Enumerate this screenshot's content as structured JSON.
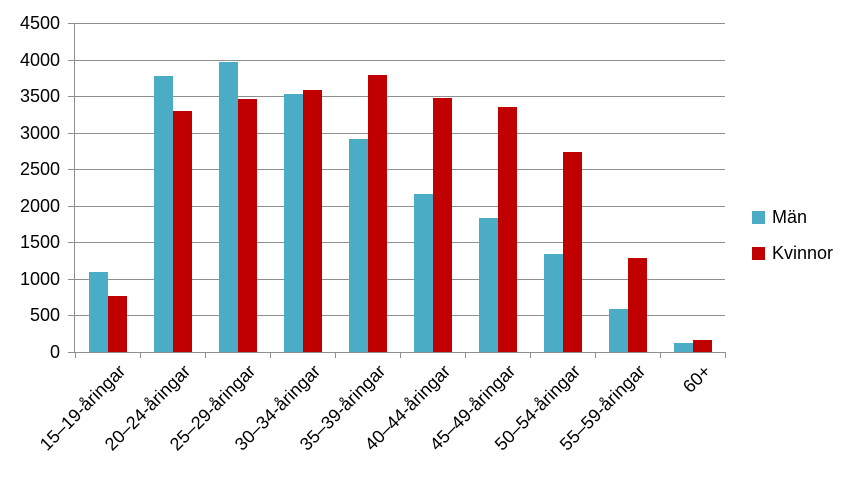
{
  "chart_data": {
    "type": "bar",
    "title": "",
    "xlabel": "",
    "ylabel": "",
    "categories": [
      "15–19-åringar",
      "20–24-åringar",
      "25–29-åringar",
      "30–34-åringar",
      "35–39-åringar",
      "40–44-åringar",
      "45–49-åringar",
      "50–54-åringar",
      "55–59-åringar",
      "60+"
    ],
    "series": [
      {
        "name": "Män",
        "color": "#4BACC6",
        "values": [
          1090,
          3780,
          3970,
          3530,
          2920,
          2160,
          1830,
          1340,
          590,
          120
        ]
      },
      {
        "name": "Kvinnor",
        "color": "#C00000",
        "values": [
          760,
          3290,
          3460,
          3580,
          3790,
          3480,
          3350,
          2740,
          1290,
          170
        ]
      }
    ],
    "ylim": [
      0,
      4500
    ],
    "yticks": [
      0,
      500,
      1000,
      1500,
      2000,
      2500,
      3000,
      3500,
      4000,
      4500
    ],
    "grid": true,
    "legend_position": "right",
    "grid_color": "#8F8F8F",
    "axis_color": "#8F8F8F",
    "text_color": "#000000",
    "background_color": "#FFFFFF"
  }
}
